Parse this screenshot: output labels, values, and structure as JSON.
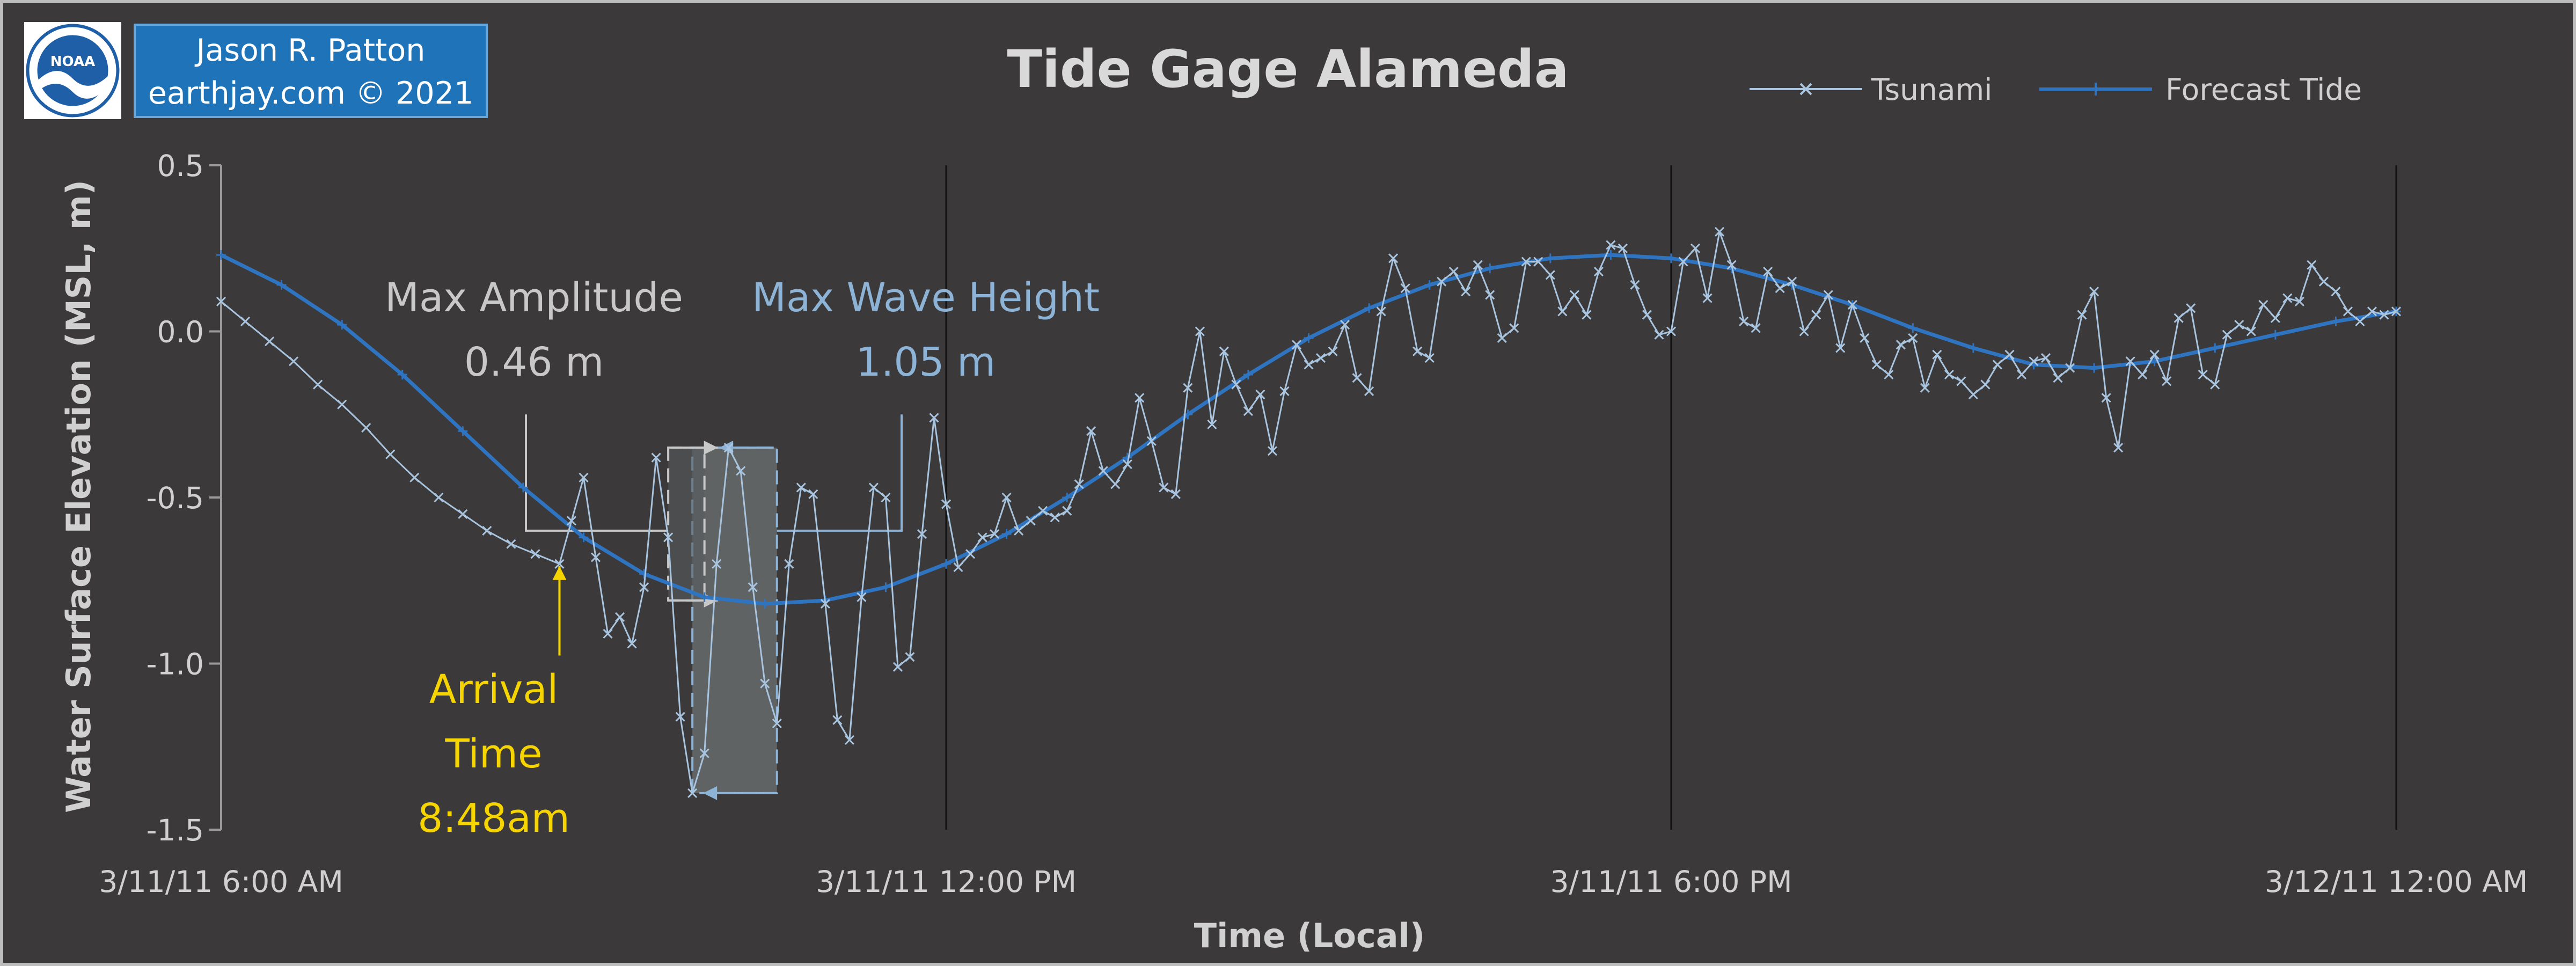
{
  "credit": {
    "line1": "Jason R. Patton",
    "line2": "earthjay.com © 2021"
  },
  "logo": {
    "icon": "noaa-logo-icon",
    "text": "NOAA"
  },
  "colors": {
    "background": "#3b3939",
    "tsunami": "#a9c4de",
    "forecast": "#2f74c0",
    "amplitude": "#c8c8c8",
    "wave_height": "#8db3d6",
    "arrival": "#f5d400",
    "credit_bg": "#1f73b8"
  },
  "chart_data": {
    "type": "line",
    "title": "Tide Gage Alameda",
    "xlabel": "Time (Local)",
    "ylabel": "Water Surface Elevation (MSL, m)",
    "xlim": [
      "3/11/11 6:00 AM",
      "3/12/11 12:00 AM"
    ],
    "ylim": [
      -1.5,
      0.5
    ],
    "x_ticks": [
      "3/11/11 6:00 AM",
      "3/11/11 12:00 PM",
      "3/11/11 6:00 PM",
      "3/12/11 12:00 AM"
    ],
    "y_ticks": [
      "0.5",
      "0.0",
      "-0.5",
      "-1.0",
      "-1.5"
    ],
    "y_tick_values": [
      0.5,
      0.0,
      -0.5,
      -1.0,
      -1.5
    ],
    "vertical_gridlines_at": [
      "3/11/11 12:00 PM",
      "3/11/11 6:00 PM",
      "3/12/11 12:00 AM"
    ],
    "legend_position": "top-right",
    "series": [
      {
        "name": "Tsunami",
        "marker": "x",
        "points": [
          [
            "3/11/11 6:00 AM",
            0.09
          ],
          [
            "3/11/11 6:12 AM",
            0.03
          ],
          [
            "3/11/11 6:24 AM",
            -0.03
          ],
          [
            "3/11/11 6:36 AM",
            -0.09
          ],
          [
            "3/11/11 6:48 AM",
            -0.16
          ],
          [
            "3/11/11 7:00 AM",
            -0.22
          ],
          [
            "3/11/11 7:12 AM",
            -0.29
          ],
          [
            "3/11/11 7:24 AM",
            -0.37
          ],
          [
            "3/11/11 7:36 AM",
            -0.44
          ],
          [
            "3/11/11 7:48 AM",
            -0.5
          ],
          [
            "3/11/11 8:00 AM",
            -0.55
          ],
          [
            "3/11/11 8:12 AM",
            -0.6
          ],
          [
            "3/11/11 8:24 AM",
            -0.64
          ],
          [
            "3/11/11 8:36 AM",
            -0.67
          ],
          [
            "3/11/11 8:48 AM",
            -0.7
          ],
          [
            "3/11/11 8:54 AM",
            -0.57
          ],
          [
            "3/11/11 9:00 AM",
            -0.44
          ],
          [
            "3/11/11 9:06 AM",
            -0.68
          ],
          [
            "3/11/11 9:12 AM",
            -0.91
          ],
          [
            "3/11/11 9:18 AM",
            -0.86
          ],
          [
            "3/11/11 9:24 AM",
            -0.94
          ],
          [
            "3/11/11 9:30 AM",
            -0.77
          ],
          [
            "3/11/11 9:36 AM",
            -0.38
          ],
          [
            "3/11/11 9:42 AM",
            -0.62
          ],
          [
            "3/11/11 9:48 AM",
            -1.16
          ],
          [
            "3/11/11 9:54 AM",
            -1.39
          ],
          [
            "3/11/11 10:00 AM",
            -1.27
          ],
          [
            "3/11/11 10:06 AM",
            -0.7
          ],
          [
            "3/11/11 10:12 AM",
            -0.35
          ],
          [
            "3/11/11 10:18 AM",
            -0.42
          ],
          [
            "3/11/11 10:24 AM",
            -0.77
          ],
          [
            "3/11/11 10:30 AM",
            -1.06
          ],
          [
            "3/11/11 10:36 AM",
            -1.18
          ],
          [
            "3/11/11 10:42 AM",
            -0.7
          ],
          [
            "3/11/11 10:48 AM",
            -0.47
          ],
          [
            "3/11/11 10:54 AM",
            -0.49
          ],
          [
            "3/11/11 11:00 AM",
            -0.82
          ],
          [
            "3/11/11 11:06 AM",
            -1.17
          ],
          [
            "3/11/11 11:12 AM",
            -1.23
          ],
          [
            "3/11/11 11:18 AM",
            -0.8
          ],
          [
            "3/11/11 11:24 AM",
            -0.47
          ],
          [
            "3/11/11 11:30 AM",
            -0.5
          ],
          [
            "3/11/11 11:36 AM",
            -1.01
          ],
          [
            "3/11/11 11:42 AM",
            -0.98
          ],
          [
            "3/11/11 11:48 AM",
            -0.61
          ],
          [
            "3/11/11 11:54 AM",
            -0.26
          ],
          [
            "3/11/11 12:00 PM",
            -0.52
          ],
          [
            "3/11/11 12:06 PM",
            -0.71
          ],
          [
            "3/11/11 12:12 PM",
            -0.67
          ],
          [
            "3/11/11 12:18 PM",
            -0.62
          ],
          [
            "3/11/11 12:24 PM",
            -0.61
          ],
          [
            "3/11/11 12:30 PM",
            -0.5
          ],
          [
            "3/11/11 12:36 PM",
            -0.6
          ],
          [
            "3/11/11 12:42 PM",
            -0.57
          ],
          [
            "3/11/11 12:48 PM",
            -0.54
          ],
          [
            "3/11/11 12:54 PM",
            -0.56
          ],
          [
            "3/11/11 1:00 PM",
            -0.54
          ],
          [
            "3/11/11 1:06 PM",
            -0.46
          ],
          [
            "3/11/11 1:12 PM",
            -0.3
          ],
          [
            "3/11/11 1:18 PM",
            -0.42
          ],
          [
            "3/11/11 1:24 PM",
            -0.46
          ],
          [
            "3/11/11 1:30 PM",
            -0.4
          ],
          [
            "3/11/11 1:36 PM",
            -0.2
          ],
          [
            "3/11/11 1:42 PM",
            -0.33
          ],
          [
            "3/11/11 1:48 PM",
            -0.47
          ],
          [
            "3/11/11 1:54 PM",
            -0.49
          ],
          [
            "3/11/11 2:00 PM",
            -0.17
          ],
          [
            "3/11/11 2:06 PM",
            0.0
          ],
          [
            "3/11/11 2:12 PM",
            -0.28
          ],
          [
            "3/11/11 2:18 PM",
            -0.06
          ],
          [
            "3/11/11 2:24 PM",
            -0.16
          ],
          [
            "3/11/11 2:30 PM",
            -0.24
          ],
          [
            "3/11/11 2:36 PM",
            -0.19
          ],
          [
            "3/11/11 2:42 PM",
            -0.36
          ],
          [
            "3/11/11 2:48 PM",
            -0.18
          ],
          [
            "3/11/11 2:54 PM",
            -0.04
          ],
          [
            "3/11/11 3:00 PM",
            -0.1
          ],
          [
            "3/11/11 3:06 PM",
            -0.08
          ],
          [
            "3/11/11 3:12 PM",
            -0.06
          ],
          [
            "3/11/11 3:18 PM",
            0.02
          ],
          [
            "3/11/11 3:24 PM",
            -0.14
          ],
          [
            "3/11/11 3:30 PM",
            -0.18
          ],
          [
            "3/11/11 3:36 PM",
            0.06
          ],
          [
            "3/11/11 3:42 PM",
            0.22
          ],
          [
            "3/11/11 3:48 PM",
            0.13
          ],
          [
            "3/11/11 3:54 PM",
            -0.06
          ],
          [
            "3/11/11 4:00 PM",
            -0.08
          ],
          [
            "3/11/11 4:06 PM",
            0.15
          ],
          [
            "3/11/11 4:12 PM",
            0.18
          ],
          [
            "3/11/11 4:18 PM",
            0.12
          ],
          [
            "3/11/11 4:24 PM",
            0.2
          ],
          [
            "3/11/11 4:30 PM",
            0.11
          ],
          [
            "3/11/11 4:36 PM",
            -0.02
          ],
          [
            "3/11/11 4:42 PM",
            0.01
          ],
          [
            "3/11/11 4:48 PM",
            0.21
          ],
          [
            "3/11/11 4:54 PM",
            0.21
          ],
          [
            "3/11/11 5:00 PM",
            0.17
          ],
          [
            "3/11/11 5:06 PM",
            0.06
          ],
          [
            "3/11/11 5:12 PM",
            0.11
          ],
          [
            "3/11/11 5:18 PM",
            0.05
          ],
          [
            "3/11/11 5:24 PM",
            0.18
          ],
          [
            "3/11/11 5:30 PM",
            0.26
          ],
          [
            "3/11/11 5:36 PM",
            0.25
          ],
          [
            "3/11/11 5:42 PM",
            0.14
          ],
          [
            "3/11/11 5:48 PM",
            0.05
          ],
          [
            "3/11/11 5:54 PM",
            -0.01
          ],
          [
            "3/11/11 6:00 PM",
            0.0
          ],
          [
            "3/11/11 6:06 PM",
            0.21
          ],
          [
            "3/11/11 6:12 PM",
            0.25
          ],
          [
            "3/11/11 6:18 PM",
            0.1
          ],
          [
            "3/11/11 6:24 PM",
            0.3
          ],
          [
            "3/11/11 6:30 PM",
            0.2
          ],
          [
            "3/11/11 6:36 PM",
            0.03
          ],
          [
            "3/11/11 6:42 PM",
            0.01
          ],
          [
            "3/11/11 6:48 PM",
            0.18
          ],
          [
            "3/11/11 6:54 PM",
            0.13
          ],
          [
            "3/11/11 7:00 PM",
            0.15
          ],
          [
            "3/11/11 7:06 PM",
            0.0
          ],
          [
            "3/11/11 7:12 PM",
            0.05
          ],
          [
            "3/11/11 7:18 PM",
            0.11
          ],
          [
            "3/11/11 7:24 PM",
            -0.05
          ],
          [
            "3/11/11 7:30 PM",
            0.08
          ],
          [
            "3/11/11 7:36 PM",
            -0.02
          ],
          [
            "3/11/11 7:42 PM",
            -0.1
          ],
          [
            "3/11/11 7:48 PM",
            -0.13
          ],
          [
            "3/11/11 7:54 PM",
            -0.04
          ],
          [
            "3/11/11 8:00 PM",
            -0.02
          ],
          [
            "3/11/11 8:06 PM",
            -0.17
          ],
          [
            "3/11/11 8:12 PM",
            -0.07
          ],
          [
            "3/11/11 8:18 PM",
            -0.13
          ],
          [
            "3/11/11 8:24 PM",
            -0.15
          ],
          [
            "3/11/11 8:30 PM",
            -0.19
          ],
          [
            "3/11/11 8:36 PM",
            -0.16
          ],
          [
            "3/11/11 8:42 PM",
            -0.1
          ],
          [
            "3/11/11 8:48 PM",
            -0.07
          ],
          [
            "3/11/11 8:54 PM",
            -0.13
          ],
          [
            "3/11/11 9:00 PM",
            -0.09
          ],
          [
            "3/11/11 9:06 PM",
            -0.08
          ],
          [
            "3/11/11 9:12 PM",
            -0.14
          ],
          [
            "3/11/11 9:18 PM",
            -0.11
          ],
          [
            "3/11/11 9:24 PM",
            0.05
          ],
          [
            "3/11/11 9:30 PM",
            0.12
          ],
          [
            "3/11/11 9:36 PM",
            -0.2
          ],
          [
            "3/11/11 9:42 PM",
            -0.35
          ],
          [
            "3/11/11 9:48 PM",
            -0.09
          ],
          [
            "3/11/11 9:54 PM",
            -0.13
          ],
          [
            "3/11/11 10:00 PM",
            -0.07
          ],
          [
            "3/11/11 10:06 PM",
            -0.15
          ],
          [
            "3/11/11 10:12 PM",
            0.04
          ],
          [
            "3/11/11 10:18 PM",
            0.07
          ],
          [
            "3/11/11 10:24 PM",
            -0.13
          ],
          [
            "3/11/11 10:30 PM",
            -0.16
          ],
          [
            "3/11/11 10:36 PM",
            -0.01
          ],
          [
            "3/11/11 10:42 PM",
            0.02
          ],
          [
            "3/11/11 10:48 PM",
            0.0
          ],
          [
            "3/11/11 10:54 PM",
            0.08
          ],
          [
            "3/11/11 11:00 PM",
            0.04
          ],
          [
            "3/11/11 11:06 PM",
            0.1
          ],
          [
            "3/11/11 11:12 PM",
            0.09
          ],
          [
            "3/11/11 11:18 PM",
            0.2
          ],
          [
            "3/11/11 11:24 PM",
            0.15
          ],
          [
            "3/11/11 11:30 PM",
            0.12
          ],
          [
            "3/11/11 11:36 PM",
            0.06
          ],
          [
            "3/11/11 11:42 PM",
            0.03
          ],
          [
            "3/11/11 11:48 PM",
            0.06
          ],
          [
            "3/11/11 11:54 PM",
            0.05
          ],
          [
            "3/12/11 12:00 AM",
            0.06
          ]
        ]
      },
      {
        "name": "Forecast Tide",
        "marker": "+",
        "points": [
          [
            "3/11/11 6:00 AM",
            0.23
          ],
          [
            "3/11/11 6:30 AM",
            0.14
          ],
          [
            "3/11/11 7:00 AM",
            0.02
          ],
          [
            "3/11/11 7:30 AM",
            -0.13
          ],
          [
            "3/11/11 8:00 AM",
            -0.3
          ],
          [
            "3/11/11 8:30 AM",
            -0.47
          ],
          [
            "3/11/11 9:00 AM",
            -0.62
          ],
          [
            "3/11/11 9:30 AM",
            -0.73
          ],
          [
            "3/11/11 10:00 AM",
            -0.8
          ],
          [
            "3/11/11 10:30 AM",
            -0.82
          ],
          [
            "3/11/11 11:00 AM",
            -0.81
          ],
          [
            "3/11/11 11:30 AM",
            -0.77
          ],
          [
            "3/11/11 12:00 PM",
            -0.7
          ],
          [
            "3/11/11 12:30 PM",
            -0.61
          ],
          [
            "3/11/11 1:00 PM",
            -0.5
          ],
          [
            "3/11/11 1:30 PM",
            -0.38
          ],
          [
            "3/11/11 2:00 PM",
            -0.25
          ],
          [
            "3/11/11 2:30 PM",
            -0.13
          ],
          [
            "3/11/11 3:00 PM",
            -0.02
          ],
          [
            "3/11/11 3:30 PM",
            0.07
          ],
          [
            "3/11/11 4:00 PM",
            0.14
          ],
          [
            "3/11/11 4:30 PM",
            0.19
          ],
          [
            "3/11/11 5:00 PM",
            0.22
          ],
          [
            "3/11/11 5:30 PM",
            0.23
          ],
          [
            "3/11/11 6:00 PM",
            0.22
          ],
          [
            "3/11/11 6:30 PM",
            0.19
          ],
          [
            "3/11/11 7:00 PM",
            0.14
          ],
          [
            "3/11/11 7:30 PM",
            0.08
          ],
          [
            "3/11/11 8:00 PM",
            0.01
          ],
          [
            "3/11/11 8:30 PM",
            -0.05
          ],
          [
            "3/11/11 9:00 PM",
            -0.1
          ],
          [
            "3/11/11 9:30 PM",
            -0.11
          ],
          [
            "3/11/11 10:00 PM",
            -0.09
          ],
          [
            "3/11/11 10:30 PM",
            -0.05
          ],
          [
            "3/11/11 11:00 PM",
            -0.01
          ],
          [
            "3/11/11 11:30 PM",
            0.03
          ],
          [
            "3/12/11 12:00 AM",
            0.06
          ]
        ]
      }
    ],
    "annotations": {
      "max_amplitude": {
        "label": "Max Amplitude",
        "value": "0.46 m",
        "tide_at_peak": -0.81,
        "peak": -0.35
      },
      "max_wave_height": {
        "label": "Max Wave Height",
        "value": "1.05 m",
        "top": -0.35,
        "bottom": -1.39,
        "start": "3/11/11 9:54 AM",
        "end": "3/11/11 10:36 AM"
      },
      "arrival": {
        "line1": "Arrival",
        "line2": "Time",
        "line3": "8:48am",
        "time": "3/11/11 8:48 AM",
        "value": -0.7
      }
    }
  }
}
